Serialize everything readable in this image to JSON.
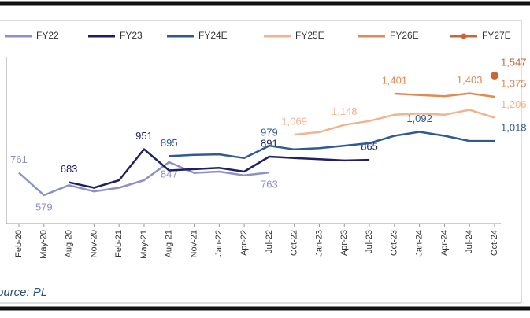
{
  "chart_data": {
    "type": "line",
    "source": "Source: PL",
    "categories": [
      "Feb-20",
      "May-20",
      "Aug-20",
      "Nov-20",
      "Feb-21",
      "May-21",
      "Aug-21",
      "Nov-21",
      "Jan-22",
      "Apr-22",
      "Jul-22",
      "Oct-22",
      "Jan-23",
      "Apr-23",
      "Jul-23",
      "Oct-23",
      "Jan-24",
      "Apr-24",
      "Jul-24",
      "Oct-24"
    ],
    "ylim": [
      350,
      1700
    ],
    "series": [
      {
        "name": "FY22",
        "color": "#8c90c8",
        "values": [
          761,
          579,
          660,
          610,
          640,
          700,
          847,
          760,
          770,
          740,
          763,
          null,
          null,
          null,
          null,
          null,
          null,
          null,
          null,
          null
        ],
        "value_labels": [
          "761",
          "579",
          null,
          null,
          null,
          null,
          "847",
          null,
          null,
          null,
          "763",
          null,
          null,
          null,
          null,
          null,
          null,
          null,
          null,
          null
        ]
      },
      {
        "name": "FY23",
        "color": "#1f1f66",
        "values": [
          null,
          null,
          683,
          640,
          700,
          951,
          780,
          790,
          800,
          770,
          891,
          880,
          870,
          860,
          865,
          null,
          null,
          null,
          null,
          null
        ],
        "value_labels": [
          null,
          null,
          "683",
          null,
          null,
          "951",
          null,
          null,
          null,
          null,
          "891",
          null,
          null,
          null,
          "865",
          null,
          null,
          null,
          null,
          null
        ]
      },
      {
        "name": "FY24E",
        "color": "#2f5a94",
        "values": [
          null,
          null,
          null,
          null,
          null,
          null,
          895,
          905,
          910,
          880,
          979,
          950,
          960,
          980,
          1000,
          1060,
          1092,
          1060,
          1018,
          1018
        ],
        "value_labels": [
          null,
          null,
          null,
          null,
          null,
          null,
          "895",
          null,
          null,
          null,
          "979",
          null,
          null,
          null,
          null,
          null,
          "1,092",
          null,
          null,
          "1,018"
        ]
      },
      {
        "name": "FY25E",
        "color": "#f0b48e",
        "values": [
          null,
          null,
          null,
          null,
          null,
          null,
          null,
          null,
          null,
          null,
          null,
          1069,
          1090,
          1148,
          1180,
          1230,
          1240,
          1230,
          1270,
          1206
        ],
        "value_labels": [
          null,
          null,
          null,
          null,
          null,
          null,
          null,
          null,
          null,
          null,
          null,
          "1,069",
          null,
          "1,148",
          null,
          null,
          null,
          null,
          null,
          "1,206"
        ]
      },
      {
        "name": "FY26E",
        "color": "#e08a56",
        "values": [
          null,
          null,
          null,
          null,
          null,
          null,
          null,
          null,
          null,
          null,
          null,
          null,
          null,
          null,
          null,
          1401,
          1390,
          1380,
          1403,
          1375
        ],
        "value_labels": [
          null,
          null,
          null,
          null,
          null,
          null,
          null,
          null,
          null,
          null,
          null,
          null,
          null,
          null,
          null,
          "1,401",
          null,
          null,
          "1,403",
          "1,375"
        ]
      },
      {
        "name": "FY27E",
        "color": "#c8663a",
        "marker": true,
        "values": [
          null,
          null,
          null,
          null,
          null,
          null,
          null,
          null,
          null,
          null,
          null,
          null,
          null,
          null,
          null,
          null,
          null,
          null,
          null,
          1547
        ],
        "value_labels": [
          null,
          null,
          null,
          null,
          null,
          null,
          null,
          null,
          null,
          null,
          null,
          null,
          null,
          null,
          null,
          null,
          null,
          null,
          null,
          "1,547"
        ]
      }
    ]
  }
}
